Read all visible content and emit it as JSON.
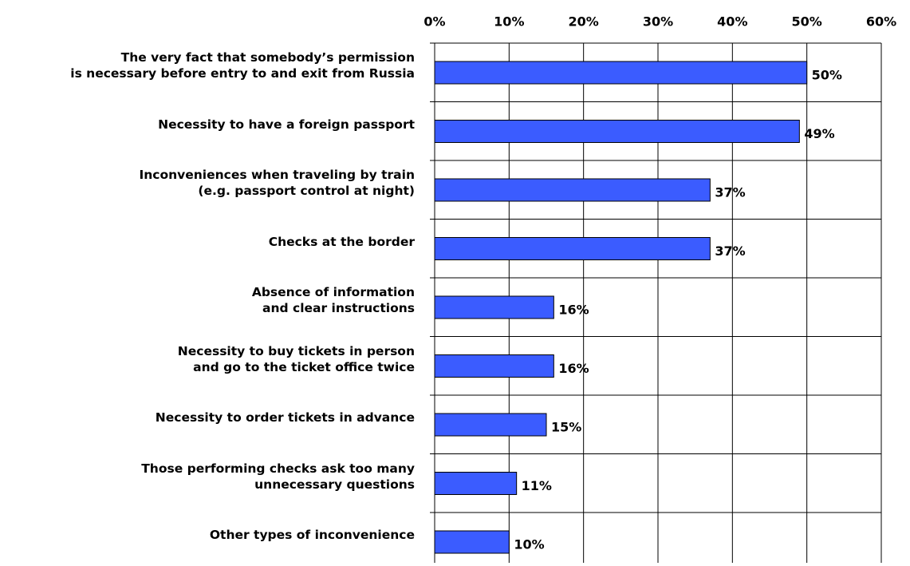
{
  "chart_data": {
    "type": "bar",
    "orientation": "horizontal",
    "categories": [
      "The very fact that somebody’s permission\nis necessary before entry to and exit from Russia",
      "Necessity to have a foreign passport",
      "Inconveniences when traveling by train\n(e.g. passport control at night)",
      "Checks at the border",
      "Absence of information\nand clear instructions",
      "Necessity to buy tickets in person\nand go to the ticket office twice",
      "Necessity to order tickets in advance",
      "Those  performing checks ask too many\nunnecessary questions",
      "Other types of inconvenience"
    ],
    "values": [
      50,
      49,
      37,
      37,
      16,
      16,
      15,
      11,
      10
    ],
    "value_labels": [
      "50%",
      "49%",
      "37%",
      "37%",
      "16%",
      "16%",
      "15%",
      "11%",
      "10%"
    ],
    "color": "#3b5cff",
    "xlim": [
      0,
      60
    ],
    "xticks": [
      {
        "value": 0,
        "label": "0%"
      },
      {
        "value": 10,
        "label": "10%"
      },
      {
        "value": 20,
        "label": "20%"
      },
      {
        "value": 30,
        "label": "30%"
      },
      {
        "value": 40,
        "label": "40%"
      },
      {
        "value": 50,
        "label": "50%"
      },
      {
        "value": 60,
        "label": "60%"
      }
    ],
    "grid": true
  }
}
